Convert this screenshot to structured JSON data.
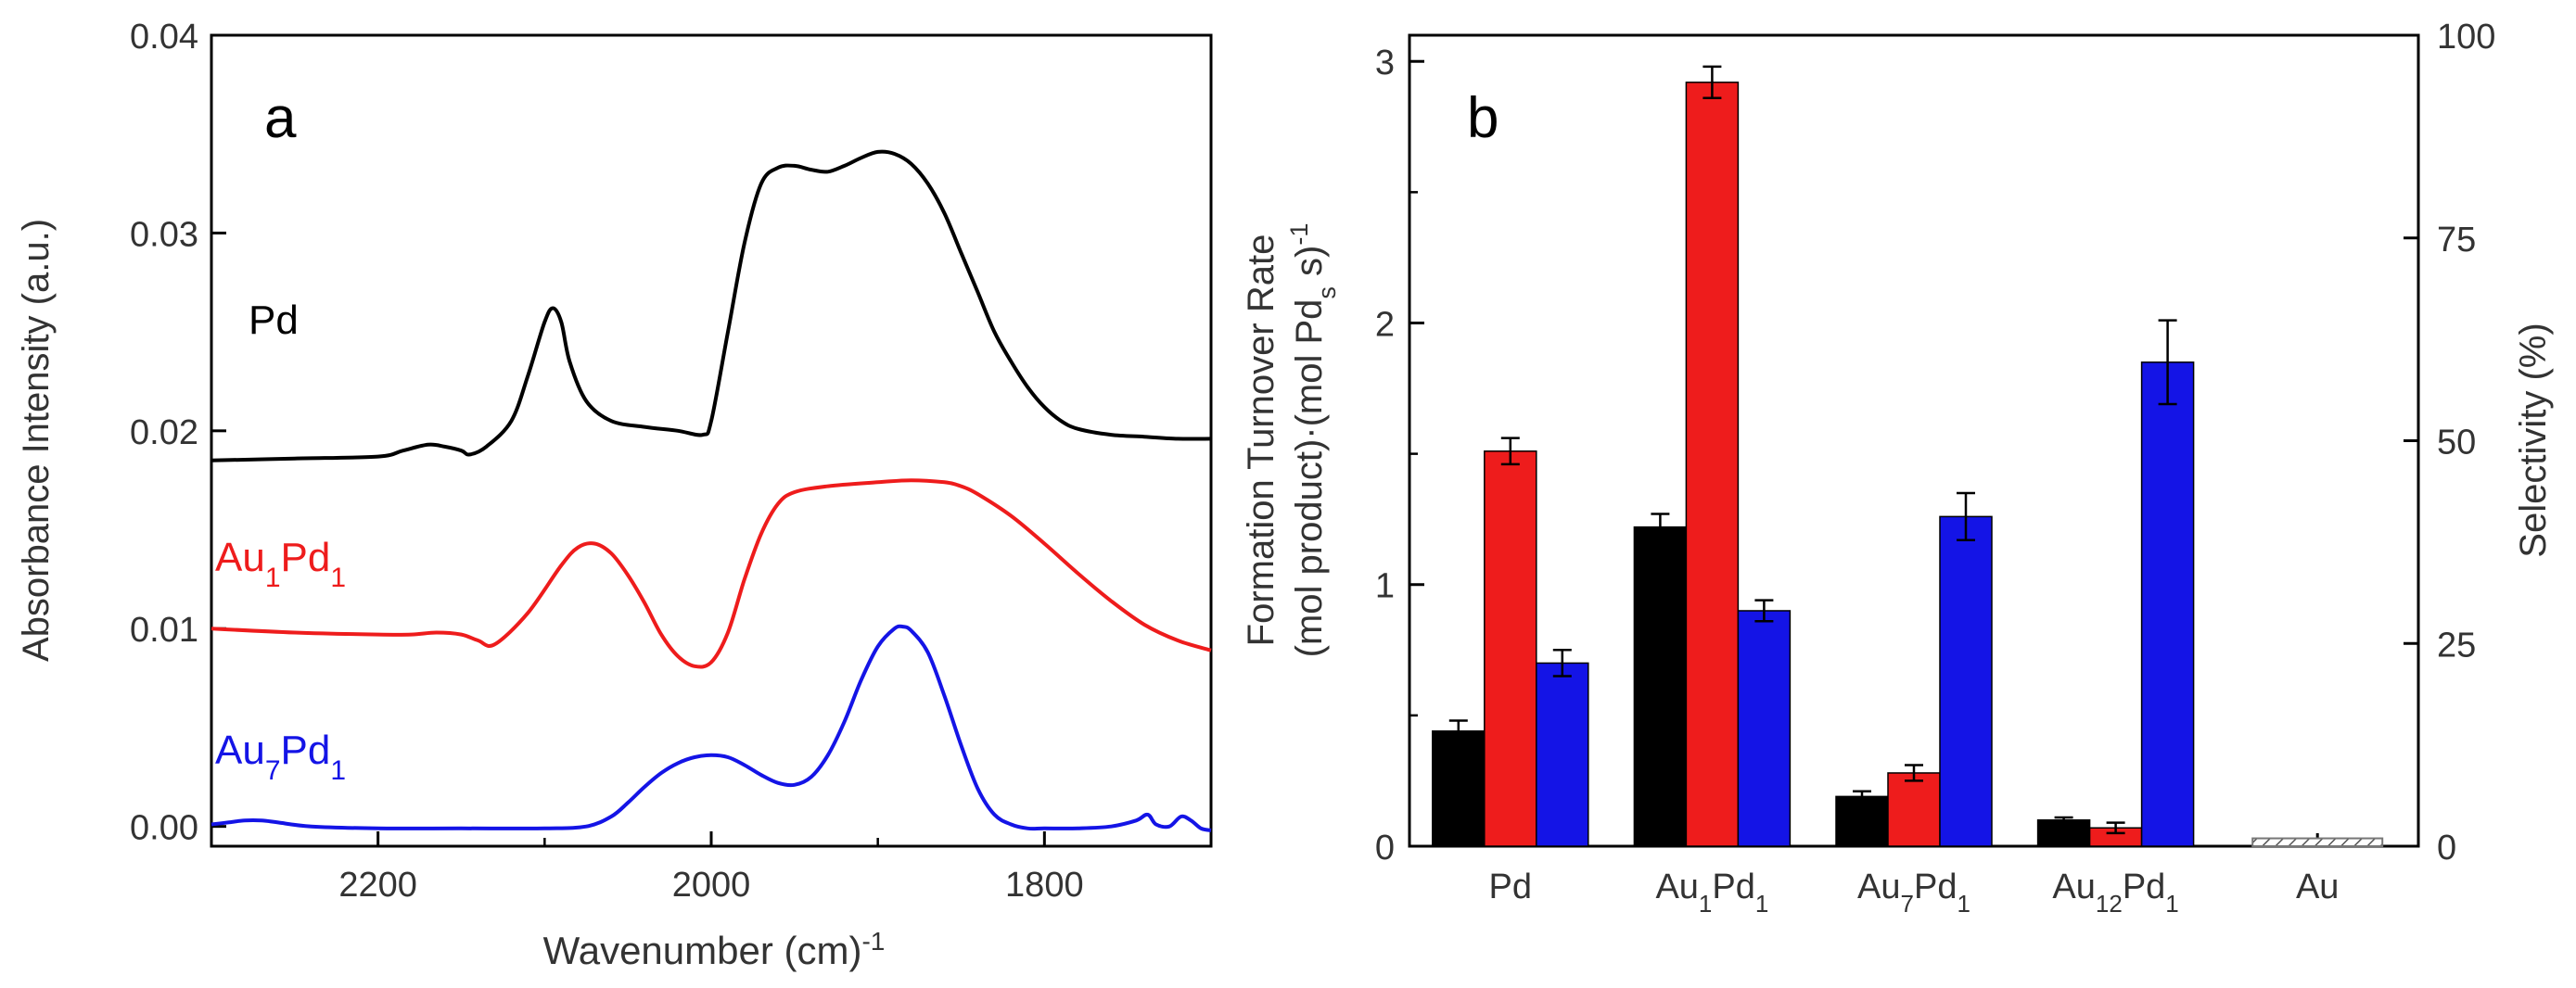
{
  "chart_data": [
    {
      "panel": "a",
      "type": "line",
      "xlabel": "Wavenumber (cm)",
      "xlabel_sup": "-1",
      "ylabel": "Absorbance Intensity (a.u.)",
      "xlim": [
        2300,
        1700
      ],
      "ylim": [
        -0.001,
        0.04
      ],
      "xticks": [
        2200,
        2000,
        1800
      ],
      "xtick_labels": [
        "2200",
        "2000",
        "1800"
      ],
      "yticks": [
        0.0,
        0.01,
        0.02,
        0.03,
        0.04
      ],
      "ytick_labels": [
        "0.00",
        "0.01",
        "0.02",
        "0.03",
        "0.04"
      ],
      "series": [
        {
          "name": "Pd",
          "label": {
            "base": "Pd",
            "parts": [
              [
                "Pd",
                ""
              ]
            ]
          },
          "color": "#000000",
          "x": [
            2300,
            2250,
            2200,
            2185,
            2170,
            2160,
            2150,
            2145,
            2135,
            2120,
            2110,
            2100,
            2095,
            2090,
            2085,
            2075,
            2060,
            2040,
            2020,
            2005,
            2000,
            1990,
            1980,
            1970,
            1960,
            1950,
            1940,
            1930,
            1920,
            1910,
            1900,
            1890,
            1880,
            1870,
            1860,
            1850,
            1840,
            1830,
            1820,
            1810,
            1800,
            1790,
            1780,
            1760,
            1740,
            1720,
            1700
          ],
          "y": [
            0.0185,
            0.0186,
            0.0187,
            0.019,
            0.0193,
            0.0192,
            0.019,
            0.0188,
            0.0192,
            0.0205,
            0.0228,
            0.0255,
            0.0262,
            0.0255,
            0.0235,
            0.0215,
            0.0205,
            0.0202,
            0.02,
            0.0198,
            0.0205,
            0.025,
            0.0295,
            0.0325,
            0.0333,
            0.0334,
            0.0332,
            0.0331,
            0.0334,
            0.0338,
            0.0341,
            0.034,
            0.0335,
            0.0325,
            0.031,
            0.029,
            0.027,
            0.025,
            0.0235,
            0.0222,
            0.0212,
            0.0205,
            0.0201,
            0.0198,
            0.0197,
            0.0196,
            0.0196
          ]
        },
        {
          "name": "Au1Pd1",
          "label": {
            "base": "Au1Pd1",
            "parts": [
              [
                "Au",
                "1"
              ],
              [
                "Pd",
                "1"
              ]
            ]
          },
          "color": "#ee1c1c",
          "x": [
            2300,
            2250,
            2200,
            2180,
            2165,
            2150,
            2140,
            2130,
            2110,
            2090,
            2080,
            2070,
            2060,
            2050,
            2040,
            2030,
            2020,
            2010,
            2000,
            1990,
            1980,
            1970,
            1960,
            1950,
            1930,
            1900,
            1880,
            1860,
            1850,
            1840,
            1820,
            1800,
            1780,
            1760,
            1740,
            1720,
            1700
          ],
          "y": [
            0.01,
            0.0098,
            0.0097,
            0.0097,
            0.0098,
            0.0097,
            0.0094,
            0.0092,
            0.0108,
            0.0132,
            0.0141,
            0.0143,
            0.0138,
            0.0127,
            0.0113,
            0.0097,
            0.0086,
            0.0081,
            0.0083,
            0.0098,
            0.0125,
            0.0148,
            0.0163,
            0.0169,
            0.0172,
            0.0174,
            0.0175,
            0.0174,
            0.0172,
            0.0168,
            0.0157,
            0.0143,
            0.0128,
            0.0114,
            0.0102,
            0.0094,
            0.0089
          ]
        },
        {
          "name": "Au7Pd1",
          "label": {
            "base": "Au7Pd1",
            "parts": [
              [
                "Au",
                "7"
              ],
              [
                "Pd",
                "1"
              ]
            ]
          },
          "color": "#1414e6",
          "x": [
            2300,
            2290,
            2280,
            2270,
            2260,
            2240,
            2200,
            2150,
            2100,
            2075,
            2060,
            2050,
            2040,
            2030,
            2020,
            2010,
            2000,
            1990,
            1980,
            1970,
            1960,
            1950,
            1940,
            1930,
            1920,
            1910,
            1900,
            1890,
            1885,
            1880,
            1870,
            1860,
            1850,
            1840,
            1830,
            1820,
            1810,
            1800,
            1780,
            1760,
            1745,
            1738,
            1733,
            1725,
            1718,
            1712,
            1706,
            1700
          ],
          "y": [
            0.0001,
            0.0002,
            0.0003,
            0.0003,
            0.0002,
            0.0,
            -0.0001,
            -0.0001,
            -0.0001,
            0.0,
            0.0005,
            0.0012,
            0.002,
            0.0027,
            0.0032,
            0.0035,
            0.0036,
            0.0035,
            0.0031,
            0.0026,
            0.0022,
            0.0021,
            0.0025,
            0.0036,
            0.0053,
            0.0074,
            0.0091,
            0.01,
            0.0101,
            0.0099,
            0.0088,
            0.0066,
            0.0041,
            0.0019,
            0.0006,
            0.0001,
            -0.0001,
            -0.0001,
            -0.0001,
            0.0,
            0.0003,
            0.0006,
            0.0001,
            0.0,
            0.0005,
            0.0003,
            -0.0001,
            -0.0002
          ]
        }
      ],
      "panel_label": "a"
    },
    {
      "panel": "b",
      "type": "bar",
      "categories": [
        {
          "name": "Pd",
          "parts": [
            [
              "Pd",
              ""
            ]
          ]
        },
        {
          "name": "Au1Pd1",
          "parts": [
            [
              "Au",
              "1"
            ],
            [
              "Pd",
              "1"
            ]
          ]
        },
        {
          "name": "Au7Pd1",
          "parts": [
            [
              "Au",
              "7"
            ],
            [
              "Pd",
              "1"
            ]
          ]
        },
        {
          "name": "Au12Pd1",
          "parts": [
            [
              "Au",
              "12"
            ],
            [
              "Pd",
              "1"
            ]
          ]
        },
        {
          "name": "Au",
          "parts": [
            [
              "Au",
              ""
            ]
          ]
        }
      ],
      "series": [
        {
          "name": "black",
          "color": "#000000",
          "values": [
            0.44,
            1.22,
            0.19,
            0.1,
            null
          ],
          "errors": [
            0.04,
            0.05,
            0.02,
            0.01,
            null
          ]
        },
        {
          "name": "red",
          "color": "#ee1c1c",
          "values": [
            1.51,
            2.92,
            0.28,
            0.07,
            null
          ],
          "errors": [
            0.05,
            0.06,
            0.03,
            0.02,
            null
          ]
        },
        {
          "name": "blue",
          "color": "#1414e6",
          "values": [
            0.7,
            0.9,
            1.26,
            1.85,
            null
          ],
          "errors": [
            0.05,
            0.04,
            0.09,
            0.16,
            null
          ]
        }
      ],
      "au_bar": {
        "value": 0.03,
        "pattern": "hatched"
      },
      "ylabel_line1": "Formation Turnover Rate",
      "ylabel_line2": "(mol product)·(mol Pd",
      "ylabel_line2_sub": "s",
      "ylabel_line2_end": " s)",
      "ylabel_line2_sup": "-1",
      "ylim": [
        0,
        3.1
      ],
      "yticks": [
        0,
        1,
        2,
        3
      ],
      "ytick_labels": [
        "0",
        "1",
        "2",
        "3"
      ],
      "y2label": "Selectivity (%)",
      "y2lim": [
        0,
        100
      ],
      "y2ticks": [
        0,
        25,
        50,
        75,
        100
      ],
      "y2tick_labels": [
        "0",
        "25",
        "50",
        "75",
        "100"
      ],
      "panel_label": "b"
    }
  ]
}
